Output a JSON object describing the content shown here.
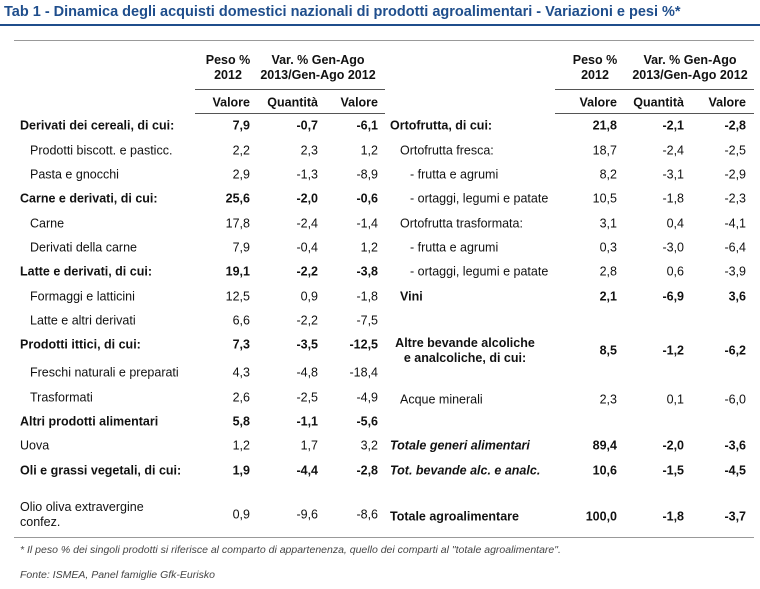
{
  "title": "Tab 1 - Dinamica degli acquisti domestici nazionali di prodotti agroalimentari - Variazioni e pesi %*",
  "left": {
    "header": {
      "peso": "Peso %\n2012",
      "var": "Var. % Gen-Ago\n2013/Gen-Ago 2012",
      "col1": "Valore",
      "col2": "Quantità",
      "col3": "Valore"
    },
    "rows": [
      [
        "Derivati dei cereali, di cui:",
        "7,9",
        "-0,7",
        "-6,1"
      ],
      [
        "Prodotti biscott. e pasticc.",
        "2,2",
        "2,3",
        "1,2"
      ],
      [
        "Pasta e gnocchi",
        "2,9",
        "-1,3",
        "-8,9"
      ],
      [
        "Carne e derivati, di cui:",
        "25,6",
        "-2,0",
        "-0,6"
      ],
      [
        "Carne",
        "17,8",
        "-2,4",
        "-1,4"
      ],
      [
        "Derivati della carne",
        "7,9",
        "-0,4",
        "1,2"
      ],
      [
        "Latte e derivati, di cui:",
        "19,1",
        "-2,2",
        "-3,8"
      ],
      [
        "Formaggi e latticini",
        "12,5",
        "0,9",
        "-1,8"
      ],
      [
        "Latte e altri derivati",
        "6,6",
        "-2,2",
        "-7,5"
      ],
      [
        "Prodotti ittici, di cui:",
        "7,3",
        "-3,5",
        "-12,5"
      ],
      [
        "Freschi naturali e preparati",
        "4,3",
        "-4,8",
        "-18,4"
      ],
      [
        "Trasformati",
        "2,6",
        "-2,5",
        "-4,9"
      ],
      [
        "Altri prodotti alimentari",
        "5,8",
        "-1,1",
        "-5,6"
      ],
      [
        "Uova",
        "1,2",
        "1,7",
        "3,2"
      ],
      [
        "Oli e grassi vegetali, di cui:",
        "1,9",
        "-4,4",
        "-2,8"
      ],
      [
        "Olio oliva extravergine confez.",
        "0,9",
        "-9,6",
        "-8,6"
      ]
    ]
  },
  "right": {
    "header": {
      "peso": "Peso %\n2012",
      "var": "Var. % Gen-Ago\n2013/Gen-Ago 2012",
      "col1": "Valore",
      "col2": "Quantità",
      "col3": "Valore"
    },
    "rows": [
      [
        "Ortofrutta, di cui:",
        "21,8",
        "-2,1",
        "-2,8"
      ],
      [
        "Ortofrutta fresca:",
        "18,7",
        "-2,4",
        "-2,5"
      ],
      [
        "- frutta e agrumi",
        "8,2",
        "-3,1",
        "-2,9"
      ],
      [
        "- ortaggi, legumi e patate",
        "10,5",
        "-1,8",
        "-2,3"
      ],
      [
        "Ortofrutta trasformata:",
        "3,1",
        "0,4",
        "-4,1"
      ],
      [
        "- frutta e agrumi",
        "0,3",
        "-3,0",
        "-6,4"
      ],
      [
        "- ortaggi, legumi e patate",
        "2,8",
        "0,6",
        "-3,9"
      ],
      [
        "Vini",
        "2,1",
        "-6,9",
        "3,6"
      ],
      [
        "Altre bevande alcoliche e analcoliche, di cui:",
        "8,5",
        "-1,2",
        "-6,2"
      ],
      [
        "Acque minerali",
        "2,3",
        "0,1",
        "-6,0"
      ],
      [
        "Totale generi alimentari",
        "89,4",
        "-2,0",
        "-3,6"
      ],
      [
        "Tot. bevande alc. e analc.",
        "10,6",
        "-1,5",
        "-4,5"
      ],
      [
        "Totale agroalimentare",
        "100,0",
        "-1,8",
        "-3,7"
      ]
    ]
  },
  "footnote": "* Il peso % dei singoli prodotti si riferisce al comparto di appartenenza, quello dei comparti al \"totale agroalimentare\".",
  "source": "Fonte: ISMEA, Panel famiglie Gfk-Eurisko"
}
